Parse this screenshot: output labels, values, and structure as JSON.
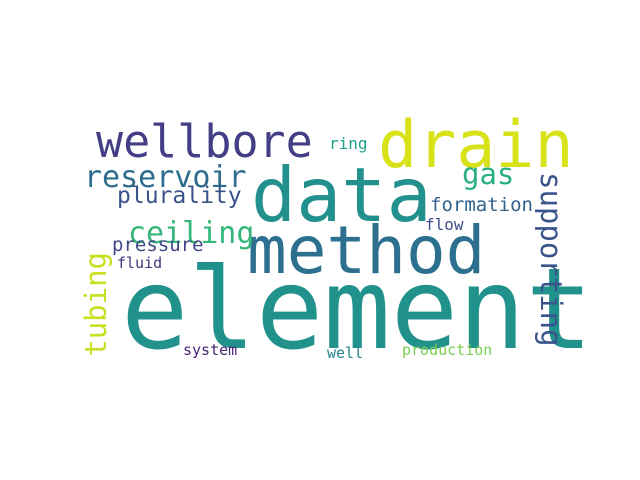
{
  "words": [
    {
      "text": "element",
      "color": "#21918c"
    },
    {
      "text": "data",
      "color": "#22908d"
    },
    {
      "text": "method",
      "color": "#2c6f8e"
    },
    {
      "text": "drain",
      "color": "#d8e219"
    },
    {
      "text": "wellbore",
      "color": "#433e85"
    },
    {
      "text": "reservoir",
      "color": "#2e6d8e"
    },
    {
      "text": "supporting",
      "color": "#3a548c"
    },
    {
      "text": "tubing",
      "color": "#c8e020"
    },
    {
      "text": "ceiling",
      "color": "#35b779"
    },
    {
      "text": "plurality",
      "color": "#3b528b"
    },
    {
      "text": "gas",
      "color": "#2ab07f"
    },
    {
      "text": "formation",
      "color": "#33638d"
    },
    {
      "text": "pressure",
      "color": "#3f4788"
    },
    {
      "text": "ring",
      "color": "#1fa088"
    },
    {
      "text": "flow",
      "color": "#3d4d8a"
    },
    {
      "text": "fluid",
      "color": "#46337e"
    },
    {
      "text": "system",
      "color": "#482576"
    },
    {
      "text": "well",
      "color": "#25838e"
    },
    {
      "text": "production",
      "color": "#7ad151"
    }
  ]
}
